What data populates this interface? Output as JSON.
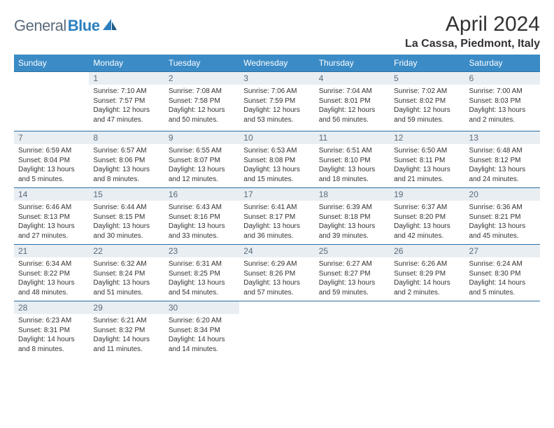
{
  "logo": {
    "text1": "General",
    "text2": "Blue"
  },
  "title": "April 2024",
  "location": "La Cassa, Piedmont, Italy",
  "colors": {
    "header_bg": "#3b8bc6",
    "header_text": "#ffffff",
    "daynum_bg": "#e8eef2",
    "daynum_text": "#5a6b7a",
    "rule": "#2a6fa3",
    "body_text": "#333333",
    "logo_gray": "#5a6b7a",
    "logo_blue": "#2b7fbf"
  },
  "day_names": [
    "Sunday",
    "Monday",
    "Tuesday",
    "Wednesday",
    "Thursday",
    "Friday",
    "Saturday"
  ],
  "weeks": [
    [
      null,
      {
        "n": "1",
        "sr": "Sunrise: 7:10 AM",
        "ss": "Sunset: 7:57 PM",
        "dl": "Daylight: 12 hours and 47 minutes."
      },
      {
        "n": "2",
        "sr": "Sunrise: 7:08 AM",
        "ss": "Sunset: 7:58 PM",
        "dl": "Daylight: 12 hours and 50 minutes."
      },
      {
        "n": "3",
        "sr": "Sunrise: 7:06 AM",
        "ss": "Sunset: 7:59 PM",
        "dl": "Daylight: 12 hours and 53 minutes."
      },
      {
        "n": "4",
        "sr": "Sunrise: 7:04 AM",
        "ss": "Sunset: 8:01 PM",
        "dl": "Daylight: 12 hours and 56 minutes."
      },
      {
        "n": "5",
        "sr": "Sunrise: 7:02 AM",
        "ss": "Sunset: 8:02 PM",
        "dl": "Daylight: 12 hours and 59 minutes."
      },
      {
        "n": "6",
        "sr": "Sunrise: 7:00 AM",
        "ss": "Sunset: 8:03 PM",
        "dl": "Daylight: 13 hours and 2 minutes."
      }
    ],
    [
      {
        "n": "7",
        "sr": "Sunrise: 6:59 AM",
        "ss": "Sunset: 8:04 PM",
        "dl": "Daylight: 13 hours and 5 minutes."
      },
      {
        "n": "8",
        "sr": "Sunrise: 6:57 AM",
        "ss": "Sunset: 8:06 PM",
        "dl": "Daylight: 13 hours and 8 minutes."
      },
      {
        "n": "9",
        "sr": "Sunrise: 6:55 AM",
        "ss": "Sunset: 8:07 PM",
        "dl": "Daylight: 13 hours and 12 minutes."
      },
      {
        "n": "10",
        "sr": "Sunrise: 6:53 AM",
        "ss": "Sunset: 8:08 PM",
        "dl": "Daylight: 13 hours and 15 minutes."
      },
      {
        "n": "11",
        "sr": "Sunrise: 6:51 AM",
        "ss": "Sunset: 8:10 PM",
        "dl": "Daylight: 13 hours and 18 minutes."
      },
      {
        "n": "12",
        "sr": "Sunrise: 6:50 AM",
        "ss": "Sunset: 8:11 PM",
        "dl": "Daylight: 13 hours and 21 minutes."
      },
      {
        "n": "13",
        "sr": "Sunrise: 6:48 AM",
        "ss": "Sunset: 8:12 PM",
        "dl": "Daylight: 13 hours and 24 minutes."
      }
    ],
    [
      {
        "n": "14",
        "sr": "Sunrise: 6:46 AM",
        "ss": "Sunset: 8:13 PM",
        "dl": "Daylight: 13 hours and 27 minutes."
      },
      {
        "n": "15",
        "sr": "Sunrise: 6:44 AM",
        "ss": "Sunset: 8:15 PM",
        "dl": "Daylight: 13 hours and 30 minutes."
      },
      {
        "n": "16",
        "sr": "Sunrise: 6:43 AM",
        "ss": "Sunset: 8:16 PM",
        "dl": "Daylight: 13 hours and 33 minutes."
      },
      {
        "n": "17",
        "sr": "Sunrise: 6:41 AM",
        "ss": "Sunset: 8:17 PM",
        "dl": "Daylight: 13 hours and 36 minutes."
      },
      {
        "n": "18",
        "sr": "Sunrise: 6:39 AM",
        "ss": "Sunset: 8:18 PM",
        "dl": "Daylight: 13 hours and 39 minutes."
      },
      {
        "n": "19",
        "sr": "Sunrise: 6:37 AM",
        "ss": "Sunset: 8:20 PM",
        "dl": "Daylight: 13 hours and 42 minutes."
      },
      {
        "n": "20",
        "sr": "Sunrise: 6:36 AM",
        "ss": "Sunset: 8:21 PM",
        "dl": "Daylight: 13 hours and 45 minutes."
      }
    ],
    [
      {
        "n": "21",
        "sr": "Sunrise: 6:34 AM",
        "ss": "Sunset: 8:22 PM",
        "dl": "Daylight: 13 hours and 48 minutes."
      },
      {
        "n": "22",
        "sr": "Sunrise: 6:32 AM",
        "ss": "Sunset: 8:24 PM",
        "dl": "Daylight: 13 hours and 51 minutes."
      },
      {
        "n": "23",
        "sr": "Sunrise: 6:31 AM",
        "ss": "Sunset: 8:25 PM",
        "dl": "Daylight: 13 hours and 54 minutes."
      },
      {
        "n": "24",
        "sr": "Sunrise: 6:29 AM",
        "ss": "Sunset: 8:26 PM",
        "dl": "Daylight: 13 hours and 57 minutes."
      },
      {
        "n": "25",
        "sr": "Sunrise: 6:27 AM",
        "ss": "Sunset: 8:27 PM",
        "dl": "Daylight: 13 hours and 59 minutes."
      },
      {
        "n": "26",
        "sr": "Sunrise: 6:26 AM",
        "ss": "Sunset: 8:29 PM",
        "dl": "Daylight: 14 hours and 2 minutes."
      },
      {
        "n": "27",
        "sr": "Sunrise: 6:24 AM",
        "ss": "Sunset: 8:30 PM",
        "dl": "Daylight: 14 hours and 5 minutes."
      }
    ],
    [
      {
        "n": "28",
        "sr": "Sunrise: 6:23 AM",
        "ss": "Sunset: 8:31 PM",
        "dl": "Daylight: 14 hours and 8 minutes."
      },
      {
        "n": "29",
        "sr": "Sunrise: 6:21 AM",
        "ss": "Sunset: 8:32 PM",
        "dl": "Daylight: 14 hours and 11 minutes."
      },
      {
        "n": "30",
        "sr": "Sunrise: 6:20 AM",
        "ss": "Sunset: 8:34 PM",
        "dl": "Daylight: 14 hours and 14 minutes."
      },
      null,
      null,
      null,
      null
    ]
  ]
}
